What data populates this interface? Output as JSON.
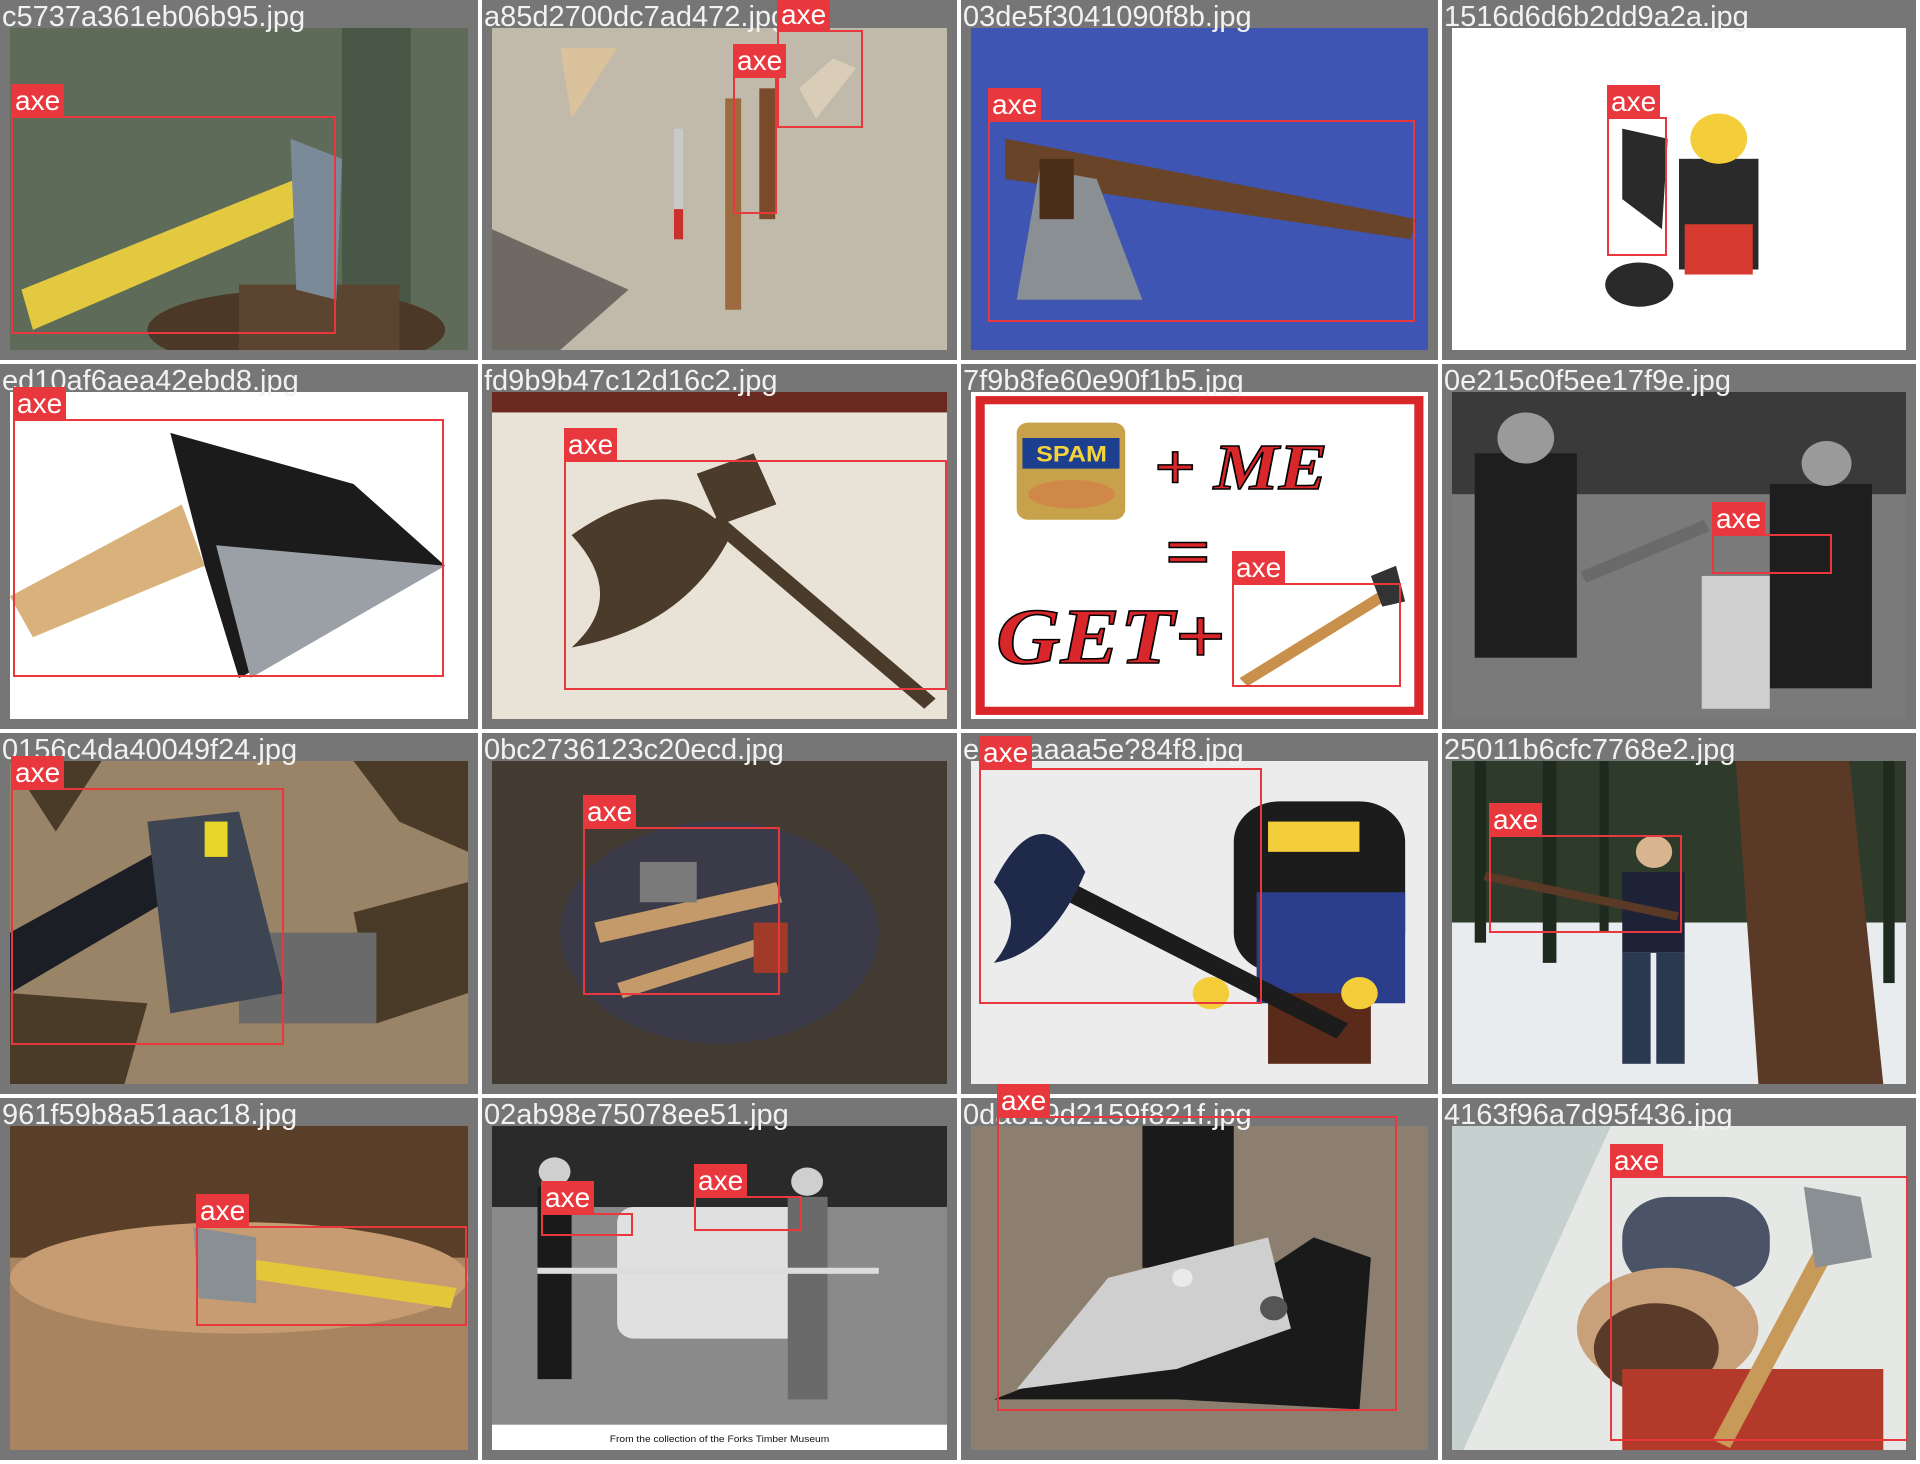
{
  "tiles": [
    {
      "filename": "c5737a361eb06b95.jpg",
      "scene": "chopping-block",
      "colors": [
        "#3c4a3a",
        "#5e6b58",
        "#e2c93f"
      ],
      "detections": [
        {
          "label": "axe"
        }
      ]
    },
    {
      "filename": "a85d2700dc7ad472.jpg",
      "scene": "tools-on-rock",
      "colors": [
        "#a9a49a",
        "#d9cdb7",
        "#9c6a3f"
      ],
      "detections": [
        {
          "label": "axe"
        },
        {
          "label": "axe"
        }
      ]
    },
    {
      "filename": "03de5f3041090f8b.jpg",
      "scene": "wooden-adze",
      "colors": [
        "#1d2f7a",
        "#3e55b3",
        "#6a4428"
      ],
      "detections": [
        {
          "label": "axe"
        }
      ]
    },
    {
      "filename": "1516d6d6b2dd9a2a.jpg",
      "scene": "lego-knight",
      "colors": [
        "#ffffff",
        "#2a2a2a",
        "#d63a2f"
      ],
      "detections": [
        {
          "label": "axe"
        }
      ]
    },
    {
      "filename": "ed10af6aea42ebd8.jpg",
      "scene": "hatchet-closeup",
      "colors": [
        "#ffffff",
        "#d8b27a",
        "#1b1b1b"
      ],
      "detections": [
        {
          "label": "axe"
        }
      ]
    },
    {
      "filename": "fd9b9b47c12d16c2.jpg",
      "scene": "halberd",
      "colors": [
        "#6b2a1f",
        "#e9e2d6",
        "#4a3b2a"
      ],
      "detections": [
        {
          "label": "axe"
        }
      ]
    },
    {
      "filename": "7f9b8fe60e90f1b5.jpg",
      "scene": "spam-meme",
      "colors": [
        "#ffffff",
        "#d9262b",
        "#c8904a"
      ],
      "meme_text": {
        "brand": "SPAM",
        "line1": "+ ME",
        "line2": "=",
        "line3": "GET+"
      },
      "detections": [
        {
          "label": "axe"
        }
      ]
    },
    {
      "filename": "0e215c0f5ee17f9e.jpg",
      "scene": "bw-workers",
      "colors": [
        "#3a3a3a",
        "#7a7a7a",
        "#cfcfcf"
      ],
      "detections": [
        {
          "label": "axe"
        }
      ]
    },
    {
      "filename": "0156c4da40049f24.jpg",
      "scene": "axe-in-woodpile",
      "colors": [
        "#4a3a28",
        "#9a8468",
        "#1b1e24"
      ],
      "detections": [
        {
          "label": "axe"
        }
      ]
    },
    {
      "filename": "0bc2736123c20ecd.jpg",
      "scene": "tools-on-ground",
      "colors": [
        "#2a2622",
        "#55493d",
        "#c49a6a"
      ],
      "detections": [
        {
          "label": "axe"
        }
      ]
    },
    {
      "filename": "e1?7aaaa5e?84f8.jpg",
      "scene": "lego-dwarf",
      "colors": [
        "#ececec",
        "#1c1c1c",
        "#2b3e8c"
      ],
      "detections": [
        {
          "label": "axe"
        }
      ]
    },
    {
      "filename": "25011b6cfc7768e2.jpg",
      "scene": "woman-chopping",
      "colors": [
        "#2e3a2a",
        "#e8ecef",
        "#5a3a26"
      ],
      "detections": [
        {
          "label": "axe"
        }
      ]
    },
    {
      "filename": "961f59b8a51aac18.jpg",
      "scene": "stump-yellow-axe",
      "colors": [
        "#5a3f28",
        "#a88460",
        "#e5c63a"
      ],
      "detections": [
        {
          "label": "axe"
        }
      ]
    },
    {
      "filename": "02ab98e75078ee51.jpg",
      "scene": "bw-saw-museum",
      "colors": [
        "#2a2a2a",
        "#8a8a8a",
        "#e0e0e0"
      ],
      "caption": "From the collection of the Forks Timber Museum",
      "detections": [
        {
          "label": "axe"
        },
        {
          "label": "axe"
        }
      ]
    },
    {
      "filename": "0da819d2159f821f.jpg",
      "scene": "hatchet-head",
      "colors": [
        "#8c7f6f",
        "#1a1a1a",
        "#cfcfcf"
      ],
      "detections": [
        {
          "label": "axe"
        }
      ]
    },
    {
      "filename": "4163f96a7d95f436.jpg",
      "scene": "lumberjack-ad",
      "colors": [
        "#e6e8e6",
        "#b33a2a",
        "#c8a07a"
      ],
      "detections": [
        {
          "label": "axe"
        }
      ]
    }
  ]
}
